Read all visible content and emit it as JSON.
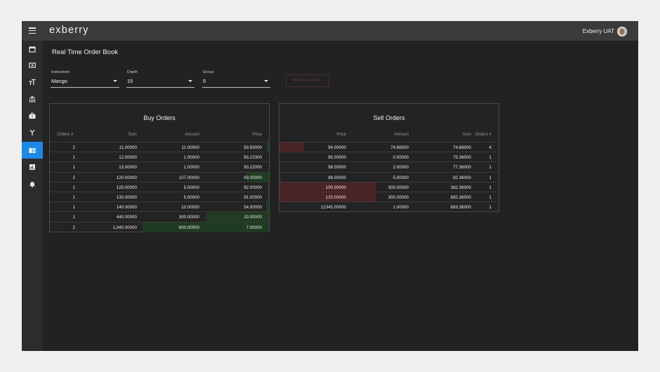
{
  "app": {
    "logo_text_1": "e",
    "logo_text_x": "x",
    "logo_text_2": "berry",
    "user_name": "Exberry UAT"
  },
  "sidebar": {
    "items": [
      {
        "icon": "calendar-icon",
        "active": false
      },
      {
        "icon": "money-icon",
        "active": false
      },
      {
        "icon": "text-size-icon",
        "active": false
      },
      {
        "icon": "bank-icon",
        "active": false
      },
      {
        "icon": "briefcase-icon",
        "active": false
      },
      {
        "icon": "merge-icon",
        "active": false
      },
      {
        "icon": "order-book-icon",
        "active": true
      },
      {
        "icon": "report-icon",
        "active": false
      },
      {
        "icon": "bell-icon",
        "active": false
      }
    ]
  },
  "page": {
    "title": "Real Time Order Book"
  },
  "filters": {
    "instrument": {
      "label": "Instrument",
      "value": "Mango"
    },
    "depth": {
      "label": "Depth",
      "value": "15"
    },
    "group": {
      "label": "Group",
      "value": "5"
    },
    "mass_cancel_label": "MASS CANCEL"
  },
  "buy_orders": {
    "title": "Buy Orders",
    "headers": [
      "Orders #",
      "Sum",
      "Amount",
      "Price"
    ],
    "rows": [
      {
        "orders": "2",
        "sum": "11.00000",
        "amount": "11.00000",
        "price": "93.50000",
        "depth_fraction": 0.018
      },
      {
        "orders": "1",
        "sum": "12.00000",
        "amount": "1.00000",
        "price": "93.22300",
        "depth_fraction": 0.002
      },
      {
        "orders": "1",
        "sum": "13.00000",
        "amount": "1.00000",
        "price": "93.22000",
        "depth_fraction": 0.002
      },
      {
        "orders": "2",
        "sum": "120.00000",
        "amount": "107.00000",
        "price": "93.00000",
        "depth_fraction": 0.18
      },
      {
        "orders": "1",
        "sum": "125.00000",
        "amount": "5.00000",
        "price": "92.00000",
        "depth_fraction": 0.01
      },
      {
        "orders": "1",
        "sum": "130.00000",
        "amount": "5.00000",
        "price": "91.00000",
        "depth_fraction": 0.01
      },
      {
        "orders": "1",
        "sum": "140.00000",
        "amount": "10.00000",
        "price": "54.00000",
        "depth_fraction": 0.02
      },
      {
        "orders": "1",
        "sum": "440.00000",
        "amount": "300.00000",
        "price": "10.00000",
        "depth_fraction": 0.5
      },
      {
        "orders": "2",
        "sum": "1,040.00000",
        "amount": "600.00000",
        "price": "7.00000",
        "depth_fraction": 1.0
      }
    ]
  },
  "sell_orders": {
    "title": "Sell Orders",
    "headers": [
      "Price",
      "Amount",
      "Sum",
      "Orders #"
    ],
    "rows": [
      {
        "price": "94.00000",
        "amount": "74.86000",
        "sum": "74.86000",
        "orders": "4",
        "depth_fraction": 0.25
      },
      {
        "price": "95.00000",
        "amount": "0.50000",
        "sum": "75.36000",
        "orders": "1",
        "depth_fraction": 0.002
      },
      {
        "price": "98.50000",
        "amount": "2.00000",
        "sum": "77.36000",
        "orders": "1",
        "depth_fraction": 0.007
      },
      {
        "price": "99.00000",
        "amount": "5.00000",
        "sum": "82.36000",
        "orders": "1",
        "depth_fraction": 0.017
      },
      {
        "price": "100.00000",
        "amount": "300.00000",
        "sum": "382.36000",
        "orders": "1",
        "depth_fraction": 1.0
      },
      {
        "price": "120.00000",
        "amount": "300.00000",
        "sum": "682.36000",
        "orders": "1",
        "depth_fraction": 1.0
      },
      {
        "price": "12345.00000",
        "amount": "1.00000",
        "sum": "683.36000",
        "orders": "1",
        "depth_fraction": 0.0
      }
    ]
  },
  "colors": {
    "buy_depth": "#1f3b21",
    "sell_depth": "#4a2426",
    "active_nav": "#1e88e5"
  }
}
